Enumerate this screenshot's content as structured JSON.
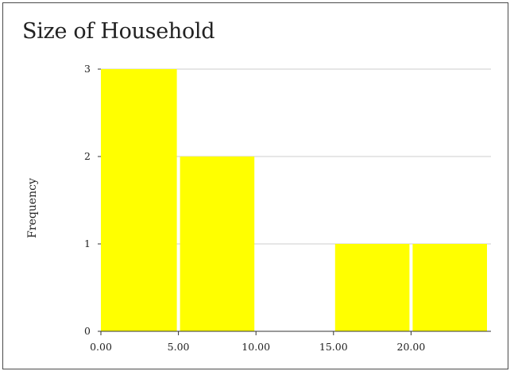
{
  "chart_data": {
    "type": "bar",
    "title": "Size of Household",
    "xlabel": "",
    "ylabel": "Frequency",
    "bins": [
      {
        "start": 0,
        "end": 5,
        "value": 3
      },
      {
        "start": 5,
        "end": 10,
        "value": 2
      },
      {
        "start": 10,
        "end": 15,
        "value": 0
      },
      {
        "start": 15,
        "end": 20,
        "value": 1
      },
      {
        "start": 20,
        "end": 25,
        "value": 1
      }
    ],
    "x_ticks": [
      {
        "value": 0,
        "label": "0.00"
      },
      {
        "value": 5,
        "label": "5.00"
      },
      {
        "value": 10,
        "label": "10.00"
      },
      {
        "value": 15,
        "label": "15.00"
      },
      {
        "value": 20,
        "label": "20.00"
      }
    ],
    "y_ticks": [
      {
        "value": 0,
        "label": "0"
      },
      {
        "value": 1,
        "label": "1"
      },
      {
        "value": 2,
        "label": "2"
      },
      {
        "value": 3,
        "label": "3"
      }
    ],
    "xlim": [
      0,
      25
    ],
    "ylim": [
      0,
      3
    ],
    "grid": true,
    "bar_color": "#ffff00",
    "grid_color": "#cccccc",
    "axis_color": "#333333"
  }
}
